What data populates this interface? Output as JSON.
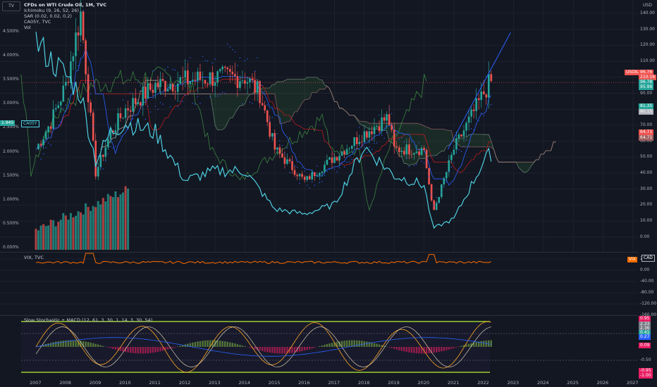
{
  "logo": {
    "label": "TV"
  },
  "main_legend": {
    "symbol": "CFDs on WTI Crude Oil, 1M, TVC",
    "indicators": [
      "Ichimoku (9, 26, 52, 26)",
      "SAR (0.02, 0.02, 0.2)",
      "CA05Y, TVC",
      "Vol"
    ]
  },
  "price_axis": {
    "unit": "USD",
    "ticks": [
      "140.00",
      "130.00",
      "120.00",
      "110.00",
      "100.00",
      "90.00",
      "80.00",
      "70.00",
      "60.00",
      "50.00",
      "40.00",
      "30.00",
      "20.00",
      "10.00",
      "0.00"
    ]
  },
  "percent_axis": {
    "ticks": [
      "4.500%",
      "4.000%",
      "3.500%",
      "3.000%",
      "2.500%",
      "2.000%",
      "1.500%",
      "1.000%",
      "0.500%",
      "0.000%"
    ]
  },
  "price_tags": [
    {
      "text": "96.76",
      "color": "#ef5350"
    },
    {
      "text": "210:16",
      "color": "#ef5350"
    },
    {
      "text": "96.78",
      "color": "#26a69a"
    },
    {
      "text": "95.99",
      "color": "#26a69a"
    },
    {
      "text": "81.35",
      "color": "#26a69a"
    },
    {
      "text": "80.15",
      "color": "#b2b5be"
    },
    {
      "text": "64.71",
      "color": "#ef5350"
    },
    {
      "text": "64.71",
      "color": "#a35f5f"
    }
  ],
  "usoil_tag": "USOIL",
  "yield_tag": {
    "value": "1.945",
    "symbol": "CA05Y"
  },
  "vix": {
    "legend": "VIX, TVC",
    "ticks": [
      "20.00",
      "0.00",
      "-40.00",
      "-80.00",
      "-120.00",
      "-160.00"
    ],
    "tag_value": "VIX",
    "tag_cad": "CAD"
  },
  "stoch": {
    "legend": "Slow Stochastic + MACD (12, 61, 3, 30, 1, 14, 3, 30, 54)",
    "ticks": [
      "0.50",
      "0.00",
      "-0.50"
    ],
    "tags": [
      {
        "text": "0.95",
        "color": "#e91e63"
      },
      {
        "text": "2.33",
        "color": "#787b86"
      },
      {
        "text": "2.36",
        "color": "#787b86"
      },
      {
        "text": "0.41",
        "color": "#26a69a"
      },
      {
        "text": "0.27",
        "color": "#2962ff"
      },
      {
        "text": "0.09",
        "color": "#e91e63"
      },
      {
        "text": "-0.95",
        "color": "#e91e63"
      },
      {
        "text": "-1.00",
        "color": "#e91e63"
      }
    ]
  },
  "time_axis": [
    "2007",
    "2008",
    "2009",
    "2010",
    "2011",
    "2012",
    "2013",
    "2014",
    "2015",
    "2016",
    "2017",
    "2018",
    "2019",
    "2020",
    "2021",
    "2022",
    "2023",
    "2024",
    "2025",
    "2026",
    "2027"
  ],
  "colors": {
    "up": "#26a69a",
    "down": "#ef5350",
    "yield": "#4dd0e1",
    "vix": "#ff6d00",
    "kijun": "#b71c1c",
    "tenkan": "#2962ff",
    "chikou": "#43a047",
    "background": "#131722"
  },
  "chart_data": {
    "type": "line",
    "series": [
      {
        "name": "CFDs on WTI Crude Oil, 1M, TVC",
        "x": [
          2007,
          2007.5,
          2008,
          2008.5,
          2009,
          2009.5,
          2010,
          2011,
          2012,
          2013,
          2014,
          2014.5,
          2015,
          2016,
          2017,
          2018,
          2018.8,
          2019,
          2020,
          2020.3,
          2021,
          2022,
          2022.2
        ],
        "values": [
          55,
          72,
          95,
          140,
          40,
          65,
          80,
          95,
          98,
          100,
          100,
          90,
          55,
          35,
          50,
          65,
          75,
          55,
          55,
          15,
          55,
          90,
          96.76
        ]
      },
      {
        "name": "CA05Y, TVC",
        "x": [
          2007,
          2007.5,
          2008,
          2008.5,
          2009,
          2009.5,
          2010,
          2011,
          2012,
          2013,
          2014,
          2015,
          2016,
          2017,
          2018,
          2019,
          2020,
          2020.3,
          2021,
          2022,
          2022.2
        ],
        "values": [
          4.3,
          3.9,
          3.6,
          3.2,
          1.8,
          2.4,
          2.6,
          2.4,
          1.4,
          1.6,
          1.6,
          0.8,
          0.7,
          0.9,
          2.1,
          1.5,
          1.3,
          0.4,
          0.6,
          1.8,
          1.945
        ]
      }
    ],
    "yunits": "USD",
    "xlim": [
      2006.5,
      2027.2
    ],
    "ylim": [
      -5,
      145
    ]
  }
}
